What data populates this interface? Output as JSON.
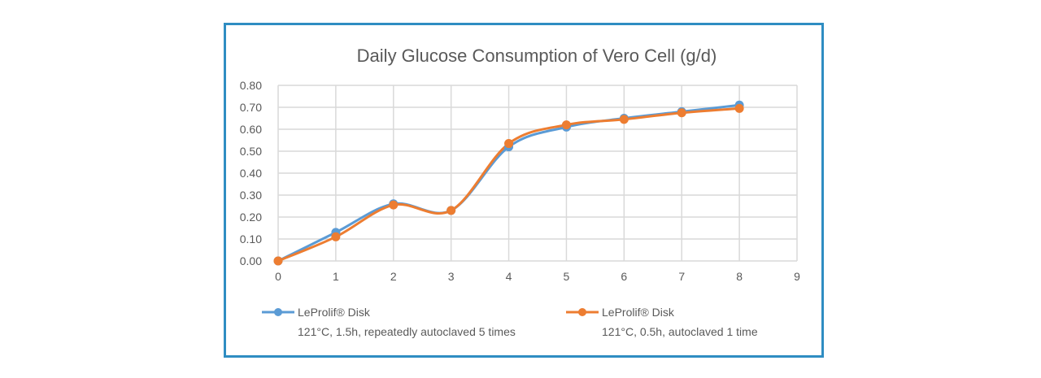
{
  "chart_data": {
    "type": "line",
    "title": "Daily Glucose Consumption of Vero Cell (g/d)",
    "xlabel": "",
    "ylabel": "",
    "x": [
      0,
      1,
      2,
      3,
      4,
      5,
      6,
      7,
      8
    ],
    "xlim": [
      0,
      9
    ],
    "ylim": [
      0,
      0.8
    ],
    "xticks": [
      "0",
      "1",
      "2",
      "3",
      "4",
      "5",
      "6",
      "7",
      "8",
      "9"
    ],
    "yticks": [
      "0.00",
      "0.10",
      "0.20",
      "0.30",
      "0.40",
      "0.50",
      "0.60",
      "0.70",
      "0.80"
    ],
    "grid": true,
    "legend_position": "bottom",
    "series": [
      {
        "name": "LeProlif® Disk",
        "subtitle": "121°C, 1.5h, repeatedly autoclaved 5 times",
        "color": "#5b9bd5",
        "values": [
          0,
          0.13,
          0.26,
          0.23,
          0.52,
          0.61,
          0.65,
          0.68,
          0.71
        ]
      },
      {
        "name": "LeProlif® Disk",
        "subtitle": "121°C, 0.5h, autoclaved 1 time",
        "color": "#ed7d31",
        "values": [
          0,
          0.11,
          0.255,
          0.23,
          0.535,
          0.62,
          0.645,
          0.675,
          0.695
        ]
      }
    ]
  }
}
